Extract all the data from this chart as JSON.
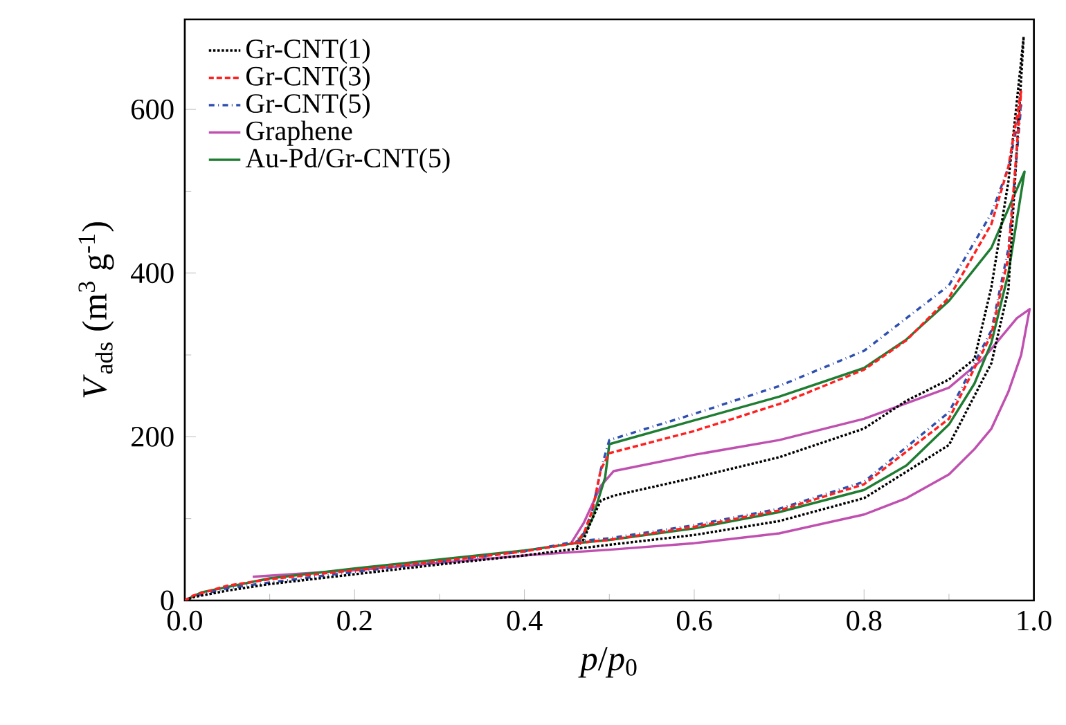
{
  "chart_data": {
    "type": "line",
    "xlabel": "*p*/*p*$_{0}$",
    "ylabel": "*V*$_{ads}$ (m$^{3}$ g$^{-1}$)",
    "xlim": [
      0,
      1.0
    ],
    "ylim": [
      0,
      710
    ],
    "xticks": [
      {
        "value": 0,
        "label": "0.0"
      },
      {
        "value": 0.2,
        "label": "0.2"
      },
      {
        "value": 0.4,
        "label": "0.4"
      },
      {
        "value": 0.6,
        "label": "0.6"
      },
      {
        "value": 0.8,
        "label": "0.8"
      },
      {
        "value": 1.0,
        "label": "1.0"
      }
    ],
    "yticks": [
      0,
      200,
      400,
      600
    ],
    "legend": "top left",
    "grid": false,
    "marker": "none",
    "series": [
      {
        "name": "Gr-CNT(1)",
        "color": "#000000",
        "line_style": "dotted",
        "x": [
          0,
          0.01,
          0.05,
          0.1,
          0.2,
          0.3,
          0.4,
          0.46,
          0.5,
          0.6,
          0.7,
          0.8,
          0.9,
          0.95,
          0.97,
          0.988,
          0.97,
          0.95,
          0.93,
          0.9,
          0.85,
          0.8,
          0.7,
          0.6,
          0.505,
          0.49,
          0.48,
          0.47,
          0.46
        ],
        "values": [
          0,
          4,
          12,
          20,
          32,
          44,
          55,
          63,
          68,
          80,
          97,
          125,
          190,
          290,
          380,
          689,
          512,
          383,
          295,
          270,
          244,
          210,
          175,
          150,
          128,
          122,
          100,
          75,
          63
        ]
      },
      {
        "name": "Gr-CNT(3)",
        "color": "#ff2020",
        "line_style": "dashed",
        "x": [
          0,
          0.01,
          0.05,
          0.1,
          0.2,
          0.3,
          0.4,
          0.46,
          0.5,
          0.6,
          0.7,
          0.8,
          0.9,
          0.95,
          0.97,
          0.985,
          0.97,
          0.95,
          0.9,
          0.85,
          0.8,
          0.7,
          0.6,
          0.5,
          0.49,
          0.48,
          0.47,
          0.46
        ],
        "values": [
          0,
          6,
          18,
          26,
          37,
          48,
          60,
          70,
          74,
          90,
          110,
          142,
          222,
          325,
          420,
          622,
          530,
          460,
          370,
          318,
          282,
          240,
          207,
          180,
          160,
          110,
          82,
          70
        ]
      },
      {
        "name": "Gr-CNT(5)",
        "color": "#3050b0",
        "line_style": "dashdot",
        "x": [
          0,
          0.01,
          0.05,
          0.1,
          0.2,
          0.3,
          0.4,
          0.46,
          0.5,
          0.6,
          0.7,
          0.8,
          0.9,
          0.95,
          0.97,
          0.985,
          0.97,
          0.95,
          0.9,
          0.8,
          0.7,
          0.6,
          0.5,
          0.49,
          0.48,
          0.47,
          0.46
        ],
        "values": [
          0,
          5,
          15,
          22,
          35,
          47,
          60,
          72,
          76,
          92,
          112,
          145,
          230,
          330,
          430,
          605,
          529,
          473,
          385,
          305,
          262,
          228,
          196,
          160,
          110,
          82,
          72
        ]
      },
      {
        "name": "Graphene",
        "color": "#c050b0",
        "line_style": "solid",
        "x": [
          0.08,
          0.2,
          0.3,
          0.4,
          0.5,
          0.6,
          0.7,
          0.8,
          0.85,
          0.9,
          0.93,
          0.95,
          0.97,
          0.985,
          0.995,
          0.98,
          0.96,
          0.94,
          0.9,
          0.8,
          0.7,
          0.6,
          0.505,
          0.49,
          0.47,
          0.455
        ],
        "values": [
          29,
          37,
          46,
          55,
          62,
          70,
          82,
          105,
          125,
          154,
          185,
          210,
          255,
          300,
          356,
          345,
          320,
          295,
          260,
          222,
          196,
          178,
          158,
          140,
          95,
          70
        ]
      },
      {
        "name": "Au-Pd/Gr-CNT(5)",
        "color": "#1e7d32",
        "line_style": "solid",
        "x": [
          0,
          0.02,
          0.1,
          0.2,
          0.3,
          0.4,
          0.46,
          0.5,
          0.6,
          0.7,
          0.8,
          0.85,
          0.9,
          0.93,
          0.95,
          0.97,
          0.989,
          0.95,
          0.9,
          0.85,
          0.8,
          0.7,
          0.6,
          0.5,
          0.495,
          0.48,
          0.47,
          0.46
        ],
        "values": [
          0,
          10,
          27,
          39,
          50,
          61,
          70,
          74,
          88,
          108,
          135,
          165,
          215,
          265,
          315,
          400,
          524,
          431,
          366,
          319,
          284,
          249,
          220,
          191,
          150,
          100,
          80,
          70
        ]
      }
    ]
  }
}
